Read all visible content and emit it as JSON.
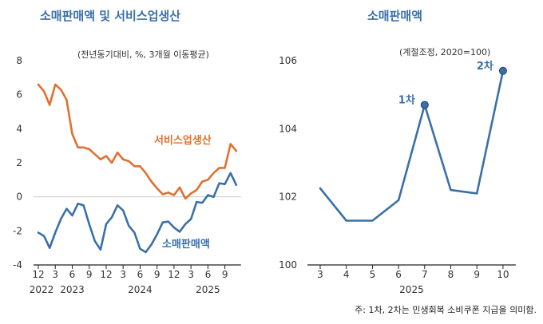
{
  "chart_data": [
    {
      "type": "line",
      "title": "소매판매액 및 서비스업생산",
      "unit_note": "(전년동기대비, %, 3개월 이동평균)",
      "ylim": [
        -4,
        8
      ],
      "yticks": [
        "8",
        "6",
        "4",
        "2",
        "0",
        "-2",
        "-4"
      ],
      "ytick_values": [
        8,
        6,
        4,
        2,
        0,
        -2,
        -4
      ],
      "x_month_ticks": [
        {
          "label": "12",
          "index": 0
        },
        {
          "label": "3",
          "index": 3
        },
        {
          "label": "6",
          "index": 6
        },
        {
          "label": "9",
          "index": 9
        },
        {
          "label": "12",
          "index": 12
        },
        {
          "label": "3",
          "index": 15
        },
        {
          "label": "6",
          "index": 18
        },
        {
          "label": "9",
          "index": 21
        },
        {
          "label": "12",
          "index": 24
        },
        {
          "label": "3",
          "index": 27
        },
        {
          "label": "6",
          "index": 30
        },
        {
          "label": "9",
          "index": 33
        }
      ],
      "x_year_ticks": [
        {
          "label": "2022",
          "index": 0
        },
        {
          "label": "2023",
          "index": 6
        },
        {
          "label": "2024",
          "index": 18
        },
        {
          "label": "2025",
          "index": 30
        }
      ],
      "series": [
        {
          "name": "서비스업생산",
          "color": "#e07030",
          "values": [
            6.6,
            6.2,
            5.4,
            6.6,
            6.3,
            5.7,
            3.7,
            2.9,
            2.9,
            2.8,
            2.5,
            2.2,
            2.4,
            2.0,
            2.6,
            2.2,
            2.1,
            1.8,
            1.8,
            1.4,
            0.9,
            0.5,
            0.15,
            0.25,
            0.1,
            0.55,
            -0.1,
            0.2,
            0.4,
            0.9,
            1.0,
            1.4,
            1.7,
            1.7,
            3.1,
            2.7
          ]
        },
        {
          "name": "소매판매액",
          "color": "#3a70a8",
          "values": [
            -2.1,
            -2.3,
            -3.0,
            -2.1,
            -1.3,
            -0.7,
            -1.1,
            -0.4,
            -0.5,
            -1.6,
            -2.6,
            -3.1,
            -1.6,
            -1.2,
            -0.5,
            -0.8,
            -1.7,
            -2.1,
            -3.05,
            -3.25,
            -2.8,
            -2.2,
            -1.5,
            -1.45,
            -1.8,
            -2.05,
            -1.6,
            -1.3,
            -0.3,
            -0.35,
            0.1,
            0.0,
            0.8,
            0.75,
            1.4,
            0.7
          ]
        }
      ],
      "zero_line": 0
    },
    {
      "type": "line",
      "title": "소매판매액",
      "unit_note": "(계절조정, 2020=100)",
      "ylim": [
        100,
        106
      ],
      "yticks": [
        "106",
        "104",
        "102",
        "100"
      ],
      "ytick_values": [
        106,
        104,
        102,
        100
      ],
      "categories": [
        "3",
        "4",
        "5",
        "6",
        "7",
        "8",
        "9",
        "10"
      ],
      "xlabel": "2025",
      "values": [
        102.25,
        101.3,
        101.3,
        101.9,
        104.7,
        102.2,
        102.1,
        105.7
      ],
      "color": "#3a70a8",
      "annotations": [
        {
          "label": "1차",
          "index": 4
        },
        {
          "label": "2차",
          "index": 7
        }
      ],
      "footnote": "주: 1차, 2차는 민생회복 소비쿠폰 지급을 의미함."
    }
  ]
}
